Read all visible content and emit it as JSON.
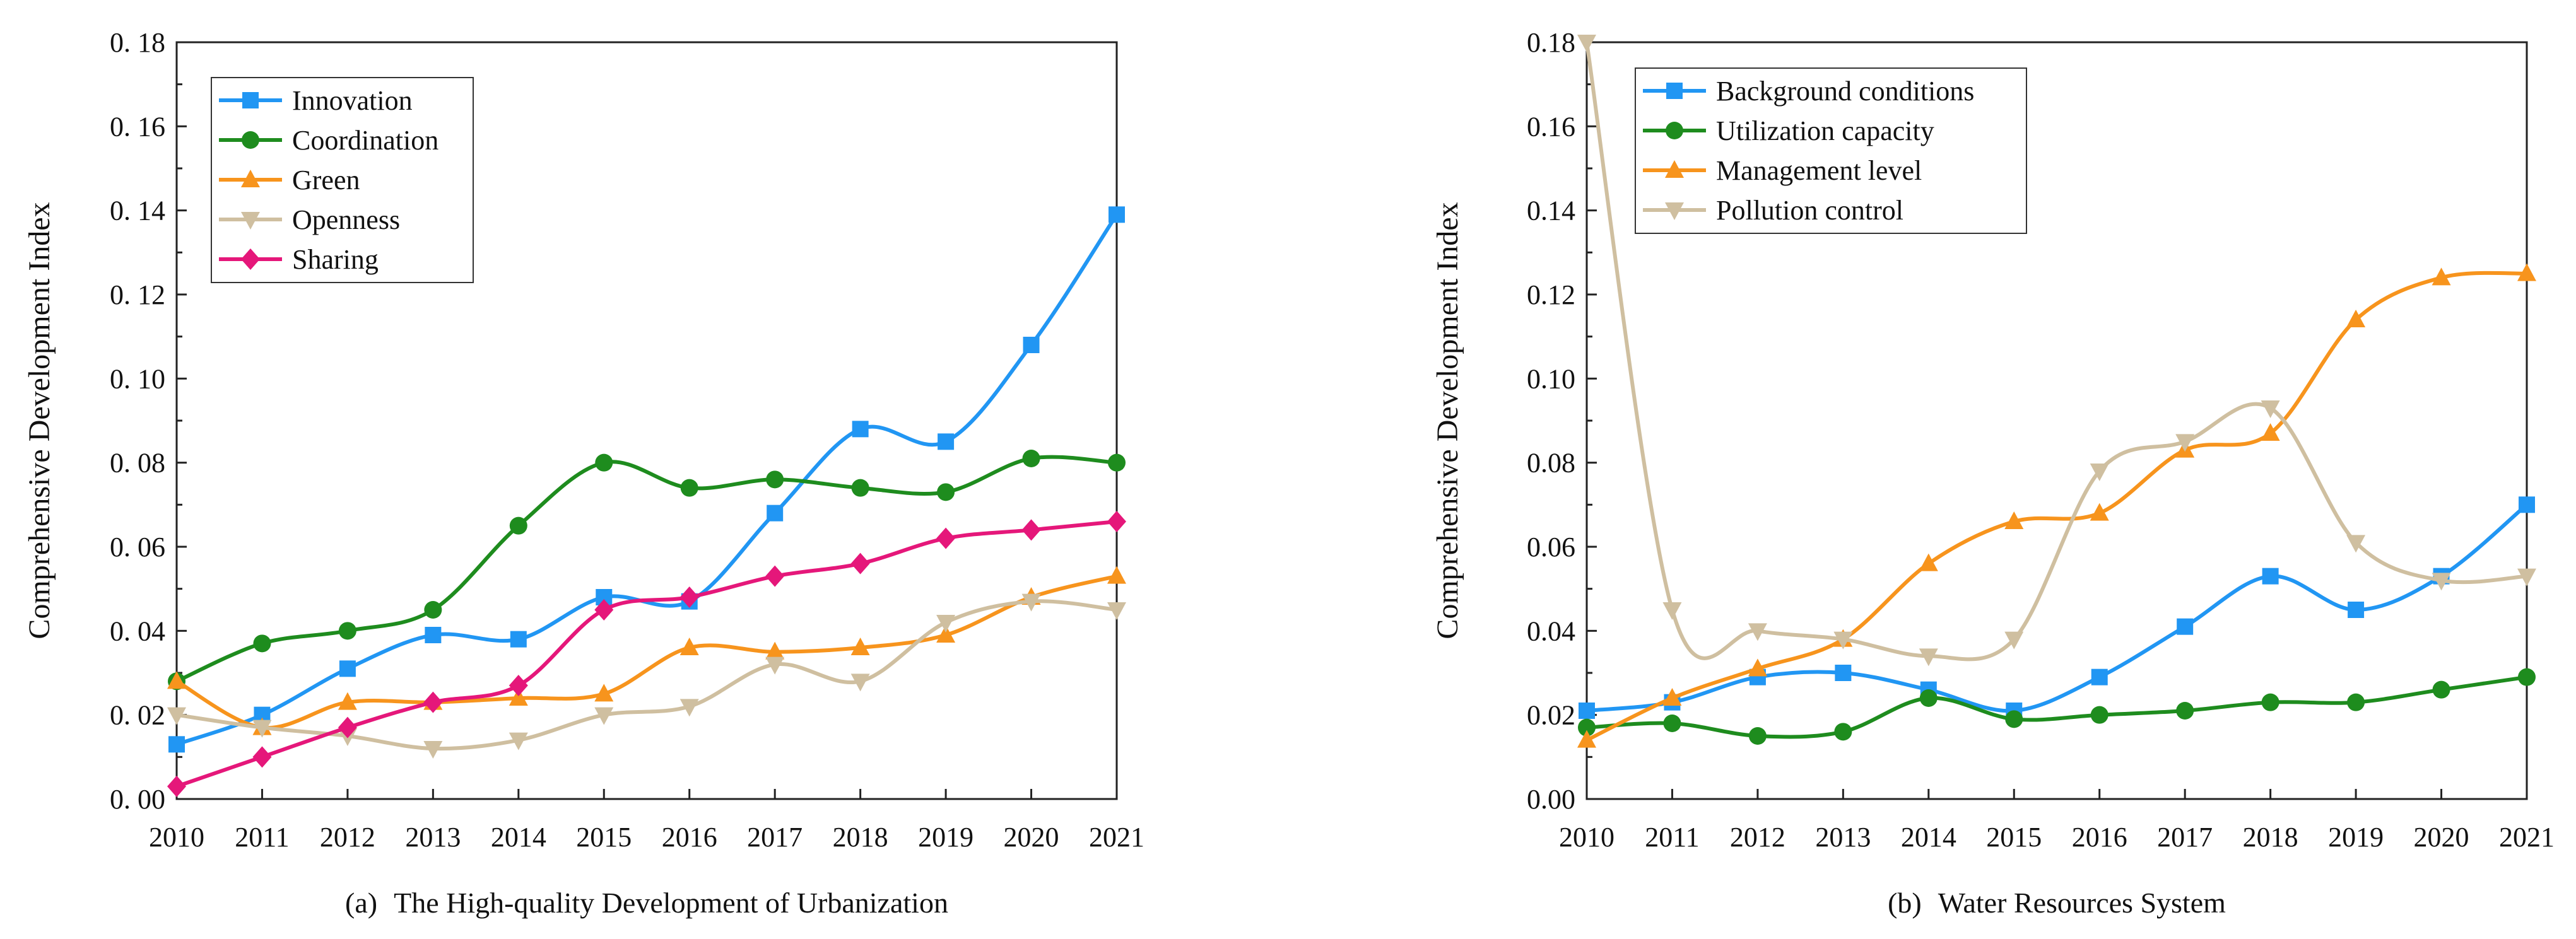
{
  "chart_data": [
    {
      "id": "left",
      "type": "line",
      "caption_prefix": "(a)",
      "caption_title": "The High-quality Development of Urbanization",
      "xlabel": "",
      "ylabel": "Comprehensive Development Index",
      "xlim": [
        2010,
        2021
      ],
      "ylim": [
        0,
        0.18
      ],
      "x": [
        2010,
        2011,
        2012,
        2013,
        2014,
        2015,
        2016,
        2017,
        2018,
        2019,
        2020,
        2021
      ],
      "xtick_labels": [
        "2010",
        "2011",
        "2012",
        "2013",
        "2014",
        "2015",
        "2016",
        "2017",
        "2018",
        "2019",
        "2020",
        "2021"
      ],
      "yticks": [
        0,
        0.02,
        0.04,
        0.06,
        0.08,
        0.1,
        0.12,
        0.14,
        0.16,
        0.18
      ],
      "ytick_labels": [
        "0. 00",
        "0. 02",
        "0. 04",
        "0. 06",
        "0. 08",
        "0. 10",
        "0. 12",
        "0. 14",
        "0. 16",
        "0. 18"
      ],
      "legend_position": "top-left",
      "series": [
        {
          "name": "Innovation",
          "color": "#2196F3",
          "marker": "square",
          "values": [
            0.013,
            0.02,
            0.031,
            0.039,
            0.038,
            0.048,
            0.047,
            0.068,
            0.088,
            0.085,
            0.108,
            0.139
          ]
        },
        {
          "name": "Coordination",
          "color": "#1E8C1E",
          "marker": "circle",
          "values": [
            0.028,
            0.037,
            0.04,
            0.045,
            0.065,
            0.08,
            0.074,
            0.076,
            0.074,
            0.073,
            0.081,
            0.08
          ]
        },
        {
          "name": "Green",
          "color": "#F7941D",
          "marker": "triangle-up",
          "values": [
            0.028,
            0.017,
            0.023,
            0.023,
            0.024,
            0.025,
            0.036,
            0.035,
            0.036,
            0.039,
            0.048,
            0.053
          ]
        },
        {
          "name": "Openness",
          "color": "#CFBFA0",
          "marker": "triangle-down",
          "values": [
            0.02,
            0.017,
            0.015,
            0.012,
            0.014,
            0.02,
            0.022,
            0.032,
            0.028,
            0.042,
            0.047,
            0.045
          ]
        },
        {
          "name": "Sharing",
          "color": "#E5177A",
          "marker": "diamond",
          "values": [
            0.003,
            0.01,
            0.017,
            0.023,
            0.027,
            0.045,
            0.048,
            0.053,
            0.056,
            0.062,
            0.064,
            0.066
          ]
        }
      ]
    },
    {
      "id": "right",
      "type": "line",
      "caption_prefix": "(b)",
      "caption_title": "Water Resources System",
      "xlabel": "",
      "ylabel": "Comprehensive Development Index",
      "xlim": [
        2010,
        2021
      ],
      "ylim": [
        0,
        0.18
      ],
      "x": [
        2010,
        2011,
        2012,
        2013,
        2014,
        2015,
        2016,
        2017,
        2018,
        2019,
        2020,
        2021
      ],
      "xtick_labels": [
        "2010",
        "2011",
        "2012",
        "2013",
        "2014",
        "2015",
        "2016",
        "2017",
        "2018",
        "2019",
        "2020",
        "2021"
      ],
      "yticks": [
        0,
        0.02,
        0.04,
        0.06,
        0.08,
        0.1,
        0.12,
        0.14,
        0.16,
        0.18
      ],
      "ytick_labels": [
        "0.00",
        "0.02",
        "0.04",
        "0.06",
        "0.08",
        "0.10",
        "0.12",
        "0.14",
        "0.16",
        "0.18"
      ],
      "legend_position": "top-left",
      "series": [
        {
          "name": "Background conditions",
          "color": "#2196F3",
          "marker": "square",
          "values": [
            0.021,
            0.023,
            0.029,
            0.03,
            0.026,
            0.021,
            0.029,
            0.041,
            0.053,
            0.045,
            0.053,
            0.07
          ]
        },
        {
          "name": "Utilization capacity",
          "color": "#1E8C1E",
          "marker": "circle",
          "values": [
            0.017,
            0.018,
            0.015,
            0.016,
            0.024,
            0.019,
            0.02,
            0.021,
            0.023,
            0.023,
            0.026,
            0.029
          ]
        },
        {
          "name": "Management level",
          "color": "#F7941D",
          "marker": "triangle-up",
          "values": [
            0.014,
            0.024,
            0.031,
            0.038,
            0.056,
            0.066,
            0.068,
            0.083,
            0.087,
            0.114,
            0.124,
            0.125
          ]
        },
        {
          "name": "Pollution control",
          "color": "#CFBFA0",
          "marker": "triangle-down",
          "values": [
            0.18,
            0.045,
            0.04,
            0.038,
            0.034,
            0.038,
            0.078,
            0.085,
            0.093,
            0.061,
            0.052,
            0.053
          ]
        }
      ]
    }
  ]
}
